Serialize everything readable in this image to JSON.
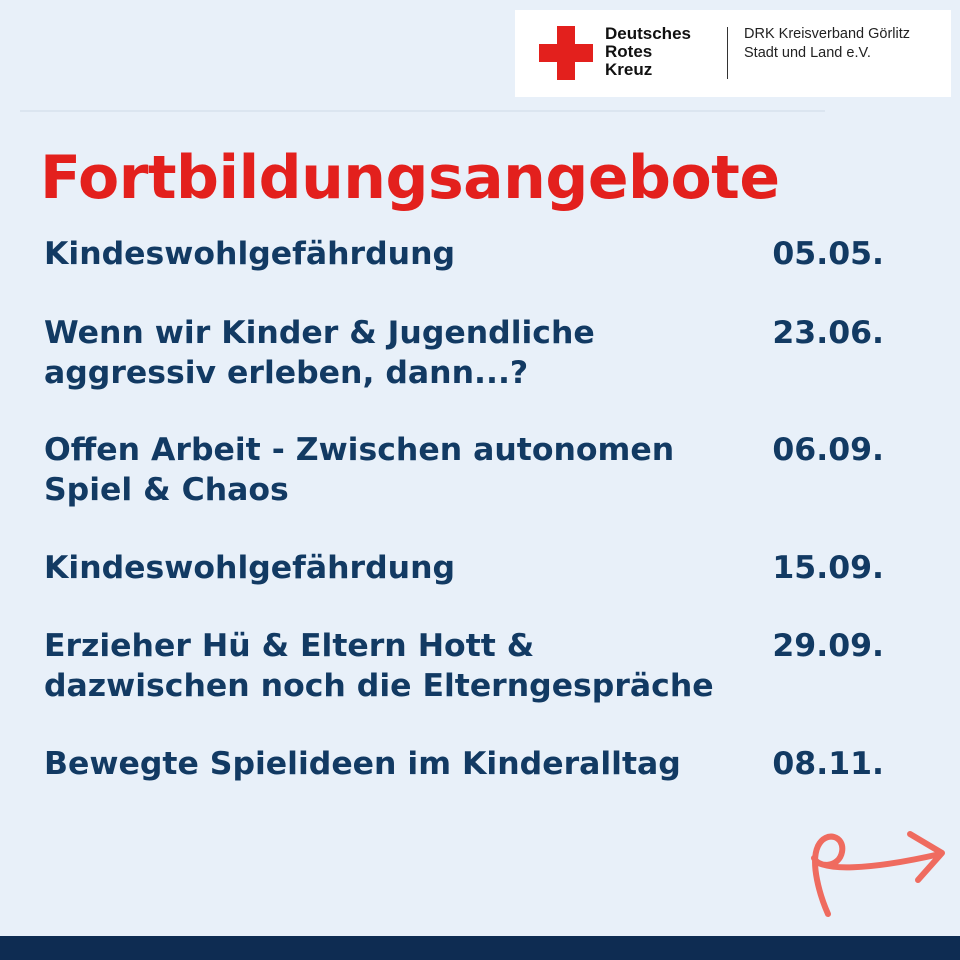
{
  "logo": {
    "name_lines": [
      "Deutsches",
      "Rotes",
      "Kreuz"
    ],
    "org_lines": [
      "DRK Kreisverband Görlitz",
      "Stadt und Land e.V."
    ],
    "cross_color": "#e3201d",
    "icon": "red-cross-icon"
  },
  "title": "Fortbildungsangebote",
  "courses": [
    {
      "lines": [
        "Kindeswohlgefährdung"
      ],
      "date": "05.05."
    },
    {
      "lines": [
        "Wenn wir Kinder & Jugendliche",
        "aggressiv erleben, dann...?"
      ],
      "date": "23.06."
    },
    {
      "lines": [
        "Offen Arbeit - Zwischen autonomen",
        "Spiel & Chaos"
      ],
      "date": "06.09."
    },
    {
      "lines": [
        "Kindeswohlgefährdung"
      ],
      "date": "15.09."
    },
    {
      "lines": [
        "Erzieher Hü & Eltern Hott &",
        "dazwischen noch die Elterngespräche"
      ],
      "date": "29.09."
    },
    {
      "lines": [
        "Bewegte Spielideen im Kinderalltag"
      ],
      "date": "08.11."
    }
  ],
  "colors": {
    "title": "#e3201d",
    "text": "#123a63",
    "background": "#e8f0f9",
    "arrow": "#ef6b5f",
    "bottom_bar": "#0e2c52"
  },
  "arrow_icon": "next-arrow-icon"
}
